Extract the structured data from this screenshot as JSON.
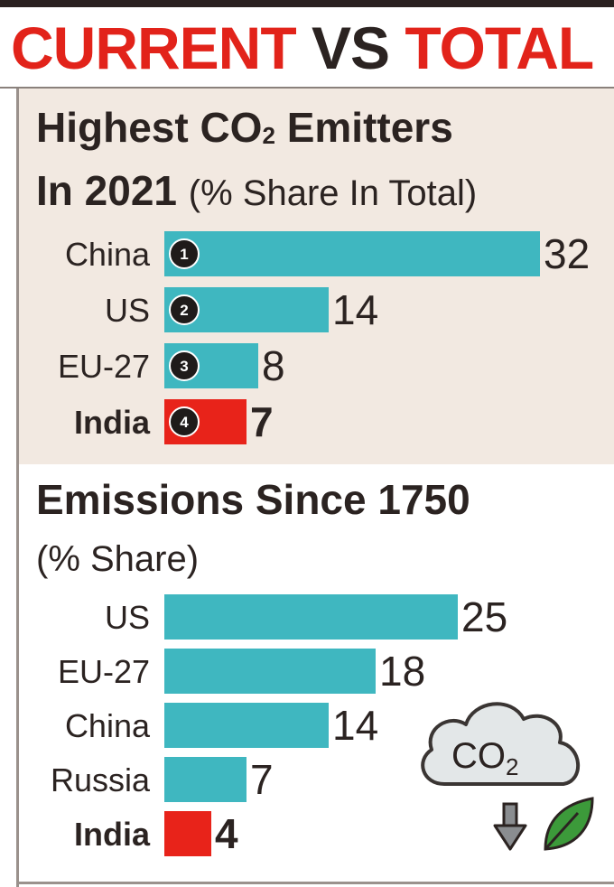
{
  "headline": {
    "word1": "CURRENT",
    "word2": "VS",
    "word3": "TOTAL"
  },
  "section1": {
    "title_a": "Highest CO",
    "title_sub": "2",
    "title_b": " Emitters",
    "title_c": "In 2021",
    "subtitle": "(% Share In Total)"
  },
  "section2": {
    "title": "Emissions Since 1750",
    "subtitle": "(% Share)"
  },
  "colors": {
    "bar": "#3fb7c0",
    "highlight": "#e8231a",
    "rank_badge": "#1f1b1a",
    "headline_red": "#e2231a"
  },
  "icon": {
    "name": "co2-cloud-icon",
    "text": "CO",
    "sub": "2"
  },
  "chart_data": [
    {
      "type": "bar",
      "orientation": "horizontal",
      "title": "Highest CO2 Emitters In 2021",
      "subtitle": "(% Share In Total)",
      "categories": [
        "China",
        "US",
        "EU-27",
        "India"
      ],
      "values": [
        32,
        14,
        8,
        7
      ],
      "ranks": [
        "1",
        "2",
        "3",
        "4"
      ],
      "highlight": [
        "India"
      ]
    },
    {
      "type": "bar",
      "orientation": "horizontal",
      "title": "Emissions Since 1750",
      "subtitle": "(% Share)",
      "categories": [
        "US",
        "EU-27",
        "China",
        "Russia",
        "India"
      ],
      "values": [
        25,
        18,
        14,
        7,
        4
      ],
      "highlight": [
        "India"
      ]
    }
  ]
}
